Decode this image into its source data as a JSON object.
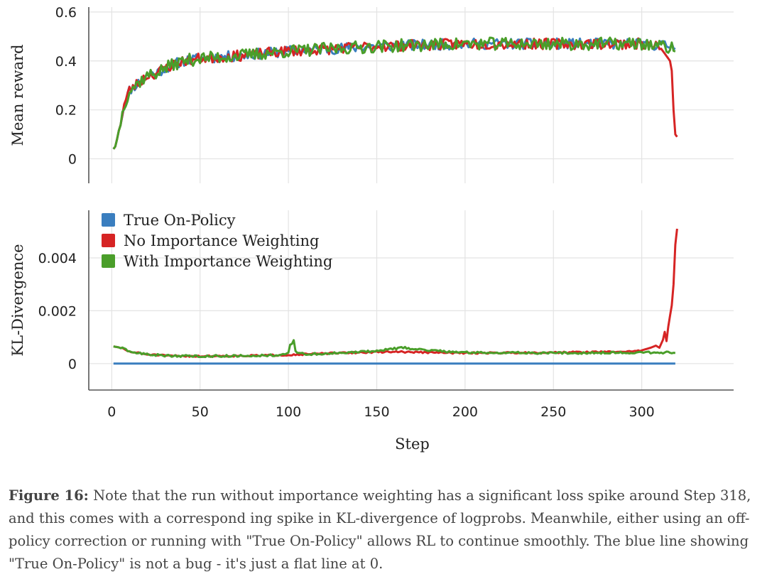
{
  "chart_data": [
    {
      "type": "line",
      "ylabel": "Mean reward",
      "xlabel": "",
      "xlim": [
        -13,
        352
      ],
      "ylim": [
        -0.1,
        0.62
      ],
      "xticks": [
        0,
        50,
        100,
        150,
        200,
        250,
        300
      ],
      "yticks": [
        {
          "value": 0,
          "label": "0"
        },
        {
          "value": 0.2,
          "label": "0.2"
        },
        {
          "value": 0.4,
          "label": "0.4"
        },
        {
          "value": 0.6,
          "label": "0.6"
        }
      ],
      "grid": true,
      "series": [
        {
          "name": "True On-Policy",
          "color": "#3a7ebf",
          "anchors": [
            [
              1,
              0.04
            ],
            [
              2,
              0.05
            ],
            [
              3,
              0.08
            ],
            [
              5,
              0.15
            ],
            [
              7,
              0.22
            ],
            [
              10,
              0.28
            ],
            [
              15,
              0.31
            ],
            [
              20,
              0.34
            ],
            [
              25,
              0.35
            ],
            [
              30,
              0.37
            ],
            [
              40,
              0.4
            ],
            [
              50,
              0.41
            ],
            [
              70,
              0.42
            ],
            [
              100,
              0.44
            ],
            [
              150,
              0.46
            ],
            [
              200,
              0.47
            ],
            [
              250,
              0.47
            ],
            [
              300,
              0.47
            ],
            [
              319,
              0.46
            ]
          ],
          "noise": 0.022,
          "seed": 11
        },
        {
          "name": "No Importance Weighting",
          "color": "#d62424",
          "anchors": [
            [
              1,
              0.04
            ],
            [
              2,
              0.05
            ],
            [
              3,
              0.08
            ],
            [
              5,
              0.15
            ],
            [
              7,
              0.22
            ],
            [
              10,
              0.28
            ],
            [
              15,
              0.31
            ],
            [
              20,
              0.34
            ],
            [
              25,
              0.35
            ],
            [
              30,
              0.37
            ],
            [
              40,
              0.4
            ],
            [
              50,
              0.41
            ],
            [
              70,
              0.42
            ],
            [
              100,
              0.44
            ],
            [
              150,
              0.46
            ],
            [
              200,
              0.47
            ],
            [
              250,
              0.47
            ],
            [
              300,
              0.47
            ],
            [
              310,
              0.46
            ],
            [
              312,
              0.44
            ],
            [
              314,
              0.42
            ],
            [
              316,
              0.4
            ],
            [
              317,
              0.36
            ],
            [
              318,
              0.2
            ],
            [
              319,
              0.1
            ],
            [
              320,
              0.09
            ]
          ],
          "noise": 0.022,
          "noise_until": 310,
          "seed": 23
        },
        {
          "name": "With Importance Weighting",
          "color": "#4a9e2a",
          "anchors": [
            [
              1,
              0.04
            ],
            [
              2,
              0.05
            ],
            [
              3,
              0.08
            ],
            [
              5,
              0.15
            ],
            [
              7,
              0.22
            ],
            [
              10,
              0.28
            ],
            [
              15,
              0.31
            ],
            [
              20,
              0.34
            ],
            [
              25,
              0.35
            ],
            [
              30,
              0.37
            ],
            [
              40,
              0.4
            ],
            [
              50,
              0.41
            ],
            [
              70,
              0.42
            ],
            [
              100,
              0.44
            ],
            [
              150,
              0.46
            ],
            [
              200,
              0.47
            ],
            [
              250,
              0.47
            ],
            [
              300,
              0.47
            ],
            [
              319,
              0.45
            ]
          ],
          "noise": 0.026,
          "seed": 37
        }
      ]
    },
    {
      "type": "line",
      "ylabel": "KL-Divergence",
      "xlabel": "Step",
      "xlim": [
        -13,
        352
      ],
      "ylim": [
        -0.001,
        0.0058
      ],
      "xticks": [
        0,
        50,
        100,
        150,
        200,
        250,
        300
      ],
      "yticks": [
        {
          "value": 0,
          "label": "0"
        },
        {
          "value": 0.002,
          "label": "0.002"
        },
        {
          "value": 0.004,
          "label": "0.004"
        }
      ],
      "grid": true,
      "legend": "top-left",
      "series": [
        {
          "name": "True On-Policy",
          "color": "#3a7ebf",
          "anchors": [
            [
              1,
              0
            ],
            [
              319,
              0
            ]
          ],
          "noise": 0,
          "seed": 1
        },
        {
          "name": "No Importance Weighting",
          "color": "#d62424",
          "anchors": [
            [
              1,
              0.00065
            ],
            [
              5,
              0.0006
            ],
            [
              10,
              0.00045
            ],
            [
              20,
              0.00035
            ],
            [
              30,
              0.0003
            ],
            [
              50,
              0.00028
            ],
            [
              80,
              0.0003
            ],
            [
              100,
              0.00033
            ],
            [
              120,
              0.00038
            ],
            [
              140,
              0.00042
            ],
            [
              160,
              0.00045
            ],
            [
              180,
              0.00042
            ],
            [
              200,
              0.0004
            ],
            [
              250,
              0.00042
            ],
            [
              290,
              0.00045
            ],
            [
              300,
              0.0005
            ],
            [
              305,
              0.0006
            ],
            [
              308,
              0.00068
            ],
            [
              310,
              0.0006
            ],
            [
              312,
              0.0009
            ],
            [
              313,
              0.0012
            ],
            [
              314,
              0.00085
            ],
            [
              315,
              0.0014
            ],
            [
              316,
              0.0018
            ],
            [
              317,
              0.0022
            ],
            [
              318,
              0.003
            ],
            [
              319,
              0.0045
            ],
            [
              320,
              0.0051
            ]
          ],
          "noise": 3e-05,
          "noise_until": 300,
          "seed": 51
        },
        {
          "name": "With Importance Weighting",
          "color": "#4a9e2a",
          "anchors": [
            [
              1,
              0.00065
            ],
            [
              5,
              0.0006
            ],
            [
              10,
              0.00045
            ],
            [
              20,
              0.00035
            ],
            [
              30,
              0.0003
            ],
            [
              50,
              0.00028
            ],
            [
              80,
              0.0003
            ],
            [
              98,
              0.00033
            ],
            [
              100,
              0.0004
            ],
            [
              101,
              0.0007
            ],
            [
              103,
              0.00085
            ],
            [
              104,
              0.00045
            ],
            [
              110,
              0.00035
            ],
            [
              130,
              0.0004
            ],
            [
              150,
              0.00048
            ],
            [
              165,
              0.0006
            ],
            [
              180,
              0.0005
            ],
            [
              200,
              0.00042
            ],
            [
              250,
              0.0004
            ],
            [
              300,
              0.00042
            ],
            [
              319,
              0.00042
            ]
          ],
          "noise": 4e-05,
          "seed": 63
        }
      ]
    }
  ],
  "legend": {
    "items": [
      {
        "label": "True On-Policy",
        "color": "#3a7ebf"
      },
      {
        "label": "No Importance Weighting",
        "color": "#d62424"
      },
      {
        "label": "With Importance Weighting",
        "color": "#4a9e2a"
      }
    ]
  },
  "caption": {
    "label": "Figure 16:",
    "text": "Note that the run without importance weighting has a significant loss spike around Step 318, and this comes with a correspond ing spike in KL-divergence of logprobs. Meanwhile, either using an off-policy correction or running with \"True On-Policy\" allows RL to continue smoothly. The blue line showing \"True On-Policy\" is not a bug - it's just a flat line at 0."
  }
}
